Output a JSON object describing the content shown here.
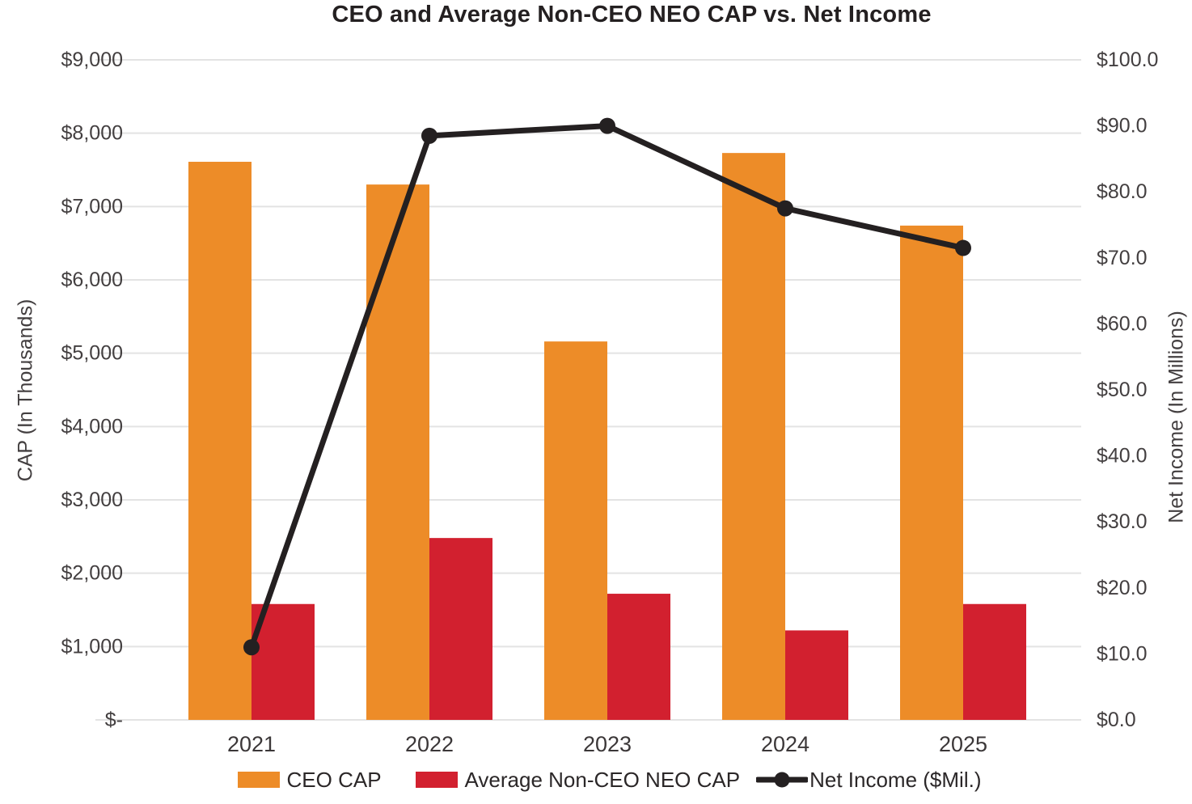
{
  "title": "CEO and Average Non-CEO NEO CAP vs. Net Income",
  "colors": {
    "grid": "#E3E3E3",
    "ink": "#242021",
    "tick_text": "#433F40",
    "ceo_bar": "#ED8C28",
    "nonceo_bar": "#D2202F"
  },
  "chart_data": {
    "type": "bar",
    "subtype": "combo-bar-line-dual-axis",
    "title": "CEO and Average Non-CEO NEO CAP vs. Net Income",
    "categories": [
      "2021",
      "2022",
      "2023",
      "2024",
      "2025"
    ],
    "series": [
      {
        "name": "CEO CAP",
        "type": "bar",
        "axis": "left",
        "color": "#ED8C28",
        "values": [
          7610,
          7300,
          5160,
          7730,
          6740
        ]
      },
      {
        "name": "Average Non-CEO NEO CAP",
        "type": "bar",
        "axis": "left",
        "color": "#D2202F",
        "values": [
          1580,
          2480,
          1720,
          1220,
          1580
        ]
      },
      {
        "name": "Net Income ($Mil.)",
        "type": "line",
        "axis": "right",
        "color": "#242021",
        "values": [
          11.0,
          88.5,
          90.0,
          77.5,
          71.5
        ]
      }
    ],
    "left_axis": {
      "title": "CAP (In Thousands)",
      "min": 0,
      "max": 9000,
      "step": 1000,
      "tick_labels": [
        "$-",
        "$1,000",
        "$2,000",
        "$3,000",
        "$4,000",
        "$5,000",
        "$6,000",
        "$7,000",
        "$8,000",
        "$9,000"
      ]
    },
    "right_axis": {
      "title": "Net Income (In Millions)",
      "min": 0,
      "max": 100,
      "step": 10,
      "tick_labels": [
        "$0.0",
        "$10.0",
        "$20.0",
        "$30.0",
        "$40.0",
        "$50.0",
        "$60.0",
        "$70.0",
        "$80.0",
        "$90.0",
        "$100.0"
      ]
    },
    "grid": true,
    "legend_position": "bottom"
  }
}
